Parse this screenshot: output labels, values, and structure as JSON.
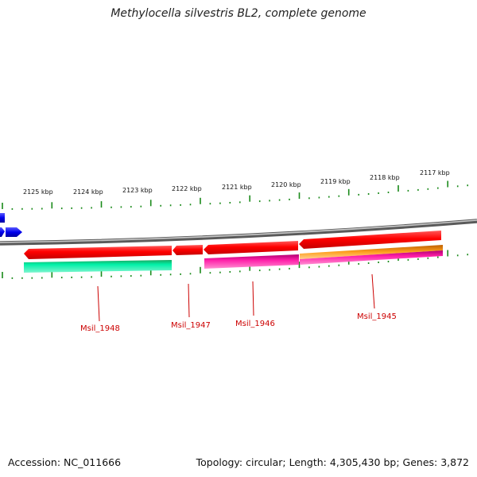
{
  "title": "Methylocella silvestris BL2, complete genome",
  "footer": {
    "accession": "Accession: NC_011666",
    "summary": "Topology: circular; Length: 4,305,430 bp; Genes: 3,872"
  },
  "scale_labels": [
    "2125 kbp",
    "2124 kbp",
    "2123 kbp",
    "2122 kbp",
    "2121 kbp",
    "2120 kbp",
    "2119 kbp",
    "2118 kbp",
    "2117 kbp"
  ],
  "genes": {
    "msil_1948": "Msil_1948",
    "msil_1947": "Msil_1947",
    "msil_1946": "Msil_1946",
    "msil_1945": "Msil_1945"
  },
  "colors": {
    "backbone": "#8a8a8a",
    "forward_gene": "#ff0000",
    "reverse_gene_blue": "#0000ee",
    "feature_teal": "#00e39a",
    "feature_magenta": "#e8189c",
    "feature_orange": "#ff9900",
    "tick": "#1a8a1a",
    "gene_label": "#cc0000"
  }
}
